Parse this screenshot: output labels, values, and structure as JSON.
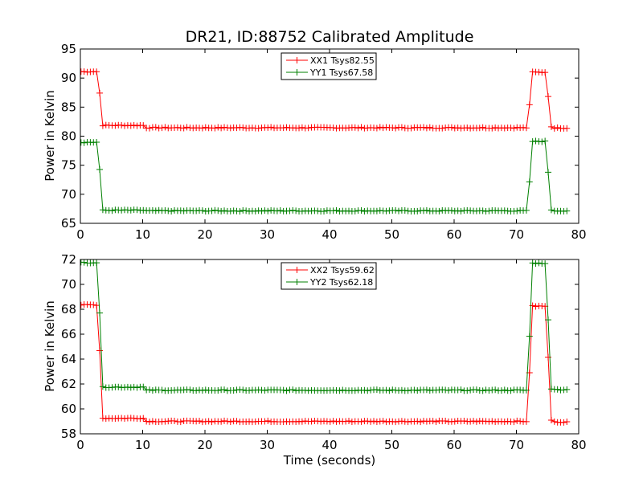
{
  "chart_data": [
    {
      "type": "line",
      "title": "DR21, ID:88752 Calibrated Amplitude",
      "xlabel": "",
      "ylabel": "Power in Kelvin",
      "xlim": [
        0,
        80
      ],
      "ylim": [
        65,
        95
      ],
      "xticks": [
        0,
        10,
        20,
        30,
        40,
        50,
        60,
        70,
        80
      ],
      "yticks": [
        65,
        70,
        75,
        80,
        85,
        90,
        95
      ],
      "grid": false,
      "legend": "top-center",
      "marker": "plus",
      "series": [
        {
          "name": "XX1 Tsys82.55",
          "color": "#ff0000",
          "baseline": 81.55,
          "segments": [
            {
              "x_start": 0.1,
              "x_end": 2.9,
              "y": 91.1
            },
            {
              "x_start": 2.9,
              "x_end": 3.4,
              "y_from": 91.1,
              "y_to": 81.9
            },
            {
              "x_start": 3.4,
              "x_end": 10.5,
              "y": 81.85
            },
            {
              "x_start": 10.5,
              "x_end": 71.8,
              "y": 81.45
            },
            {
              "x_start": 71.8,
              "x_end": 72.5,
              "y_from": 81.3,
              "y_to": 90.9
            },
            {
              "x_start": 72.5,
              "x_end": 74.7,
              "y": 91.0
            },
            {
              "x_start": 74.7,
              "x_end": 75.6,
              "y_from": 91.0,
              "y_to": 81.6
            },
            {
              "x_start": 75.6,
              "x_end": 78.3,
              "y": 81.4
            }
          ]
        },
        {
          "name": "YY1 Tsys67.58",
          "color": "#008000",
          "segments": [
            {
              "x_start": 0.1,
              "x_end": 2.9,
              "y": 78.95
            },
            {
              "x_start": 2.9,
              "x_end": 3.4,
              "y_from": 78.9,
              "y_to": 67.3
            },
            {
              "x_start": 3.4,
              "x_end": 10.5,
              "y": 67.25
            },
            {
              "x_start": 10.5,
              "x_end": 71.8,
              "y": 67.15
            },
            {
              "x_start": 71.8,
              "x_end": 72.5,
              "y_from": 67.0,
              "y_to": 79.0
            },
            {
              "x_start": 72.5,
              "x_end": 74.7,
              "y": 79.1
            },
            {
              "x_start": 74.7,
              "x_end": 75.6,
              "y_from": 79.0,
              "y_to": 67.3
            },
            {
              "x_start": 75.6,
              "x_end": 78.3,
              "y": 67.15
            }
          ]
        }
      ]
    },
    {
      "type": "line",
      "title": "",
      "xlabel": "Time (seconds)",
      "ylabel": "Power in Kelvin",
      "xlim": [
        0,
        80
      ],
      "ylim": [
        58,
        72
      ],
      "xticks": [
        0,
        10,
        20,
        30,
        40,
        50,
        60,
        70,
        80
      ],
      "yticks": [
        58,
        60,
        62,
        64,
        66,
        68,
        70,
        72
      ],
      "grid": false,
      "legend": "top-center",
      "marker": "plus",
      "series": [
        {
          "name": "XX2 Tsys59.62",
          "color": "#ff0000",
          "segments": [
            {
              "x_start": 0.1,
              "x_end": 2.9,
              "y": 68.35
            },
            {
              "x_start": 2.9,
              "x_end": 3.4,
              "y_from": 68.3,
              "y_to": 59.25
            },
            {
              "x_start": 3.4,
              "x_end": 10.5,
              "y": 59.25
            },
            {
              "x_start": 10.5,
              "x_end": 71.8,
              "y": 59.0
            },
            {
              "x_start": 71.8,
              "x_end": 72.5,
              "y_from": 59.0,
              "y_to": 68.1
            },
            {
              "x_start": 72.5,
              "x_end": 74.7,
              "y": 68.25
            },
            {
              "x_start": 74.7,
              "x_end": 75.6,
              "y_from": 68.2,
              "y_to": 59.1
            },
            {
              "x_start": 75.6,
              "x_end": 78.3,
              "y": 58.95
            }
          ]
        },
        {
          "name": "YY2 Tsys62.18",
          "color": "#008000",
          "segments": [
            {
              "x_start": 0.1,
              "x_end": 2.9,
              "y": 71.75
            },
            {
              "x_start": 2.9,
              "x_end": 3.4,
              "y_from": 71.7,
              "y_to": 61.7
            },
            {
              "x_start": 3.4,
              "x_end": 10.5,
              "y": 61.75
            },
            {
              "x_start": 10.5,
              "x_end": 71.8,
              "y": 61.5
            },
            {
              "x_start": 71.8,
              "x_end": 72.5,
              "y_from": 61.5,
              "y_to": 71.6
            },
            {
              "x_start": 72.5,
              "x_end": 74.7,
              "y": 71.7
            },
            {
              "x_start": 74.7,
              "x_end": 75.6,
              "y_from": 71.6,
              "y_to": 61.6
            },
            {
              "x_start": 75.6,
              "x_end": 78.3,
              "y": 61.55
            }
          ]
        }
      ]
    }
  ]
}
